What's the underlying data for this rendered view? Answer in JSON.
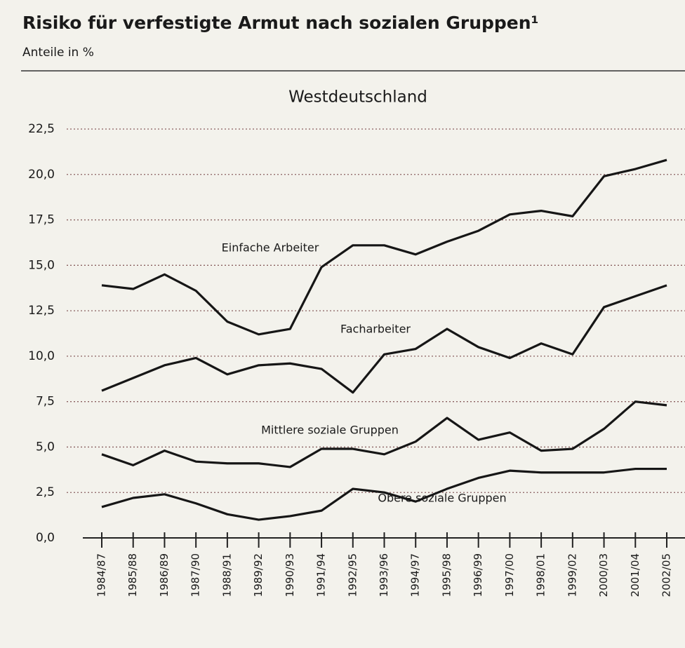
{
  "chart_data": {
    "type": "line",
    "title": "Risiko für verfestigte Armut nach sozialen Gruppen¹",
    "subtitle": "Anteile in %",
    "heading": "Westdeutschland",
    "categories": [
      "1984/87",
      "1985/88",
      "1986/89",
      "1987/90",
      "1988/91",
      "1989/92",
      "1990/93",
      "1991/94",
      "1992/95",
      "1993/96",
      "1994/97",
      "1995/98",
      "1996/99",
      "1997/00",
      "1998/01",
      "1999/02",
      "2000/03",
      "2001/04",
      "2002/05"
    ],
    "series": [
      {
        "name": "Einfache Arbeiter",
        "color": "#161616",
        "values": [
          13.9,
          13.7,
          14.5,
          13.6,
          11.9,
          11.2,
          11.5,
          14.9,
          16.1,
          16.1,
          15.6,
          16.3,
          16.9,
          17.8,
          18.0,
          17.7,
          19.9,
          20.3,
          20.8
        ]
      },
      {
        "name": "Facharbeiter",
        "color": "#161616",
        "values": [
          8.1,
          8.8,
          9.5,
          9.9,
          9.0,
          9.5,
          9.6,
          9.3,
          8.0,
          10.1,
          10.4,
          11.5,
          10.5,
          9.9,
          10.7,
          10.1,
          12.7,
          13.3,
          13.9
        ]
      },
      {
        "name": "Mittlere soziale Gruppen",
        "color": "#161616",
        "values": [
          4.6,
          4.0,
          4.8,
          4.2,
          4.1,
          4.1,
          3.9,
          4.9,
          4.9,
          4.6,
          5.3,
          6.6,
          5.4,
          5.8,
          4.8,
          4.9,
          6.0,
          7.5,
          7.3
        ]
      },
      {
        "name": "Obere soziale Gruppen",
        "color": "#161616",
        "values": [
          1.7,
          2.2,
          2.4,
          1.9,
          1.3,
          1.0,
          1.2,
          1.5,
          2.7,
          2.5,
          2.0,
          2.7,
          3.3,
          3.7,
          3.6,
          3.6,
          3.6,
          3.8,
          3.8
        ]
      }
    ],
    "ylim": [
      0,
      22.5
    ],
    "yticks": [
      {
        "value": 0,
        "label": "0,0"
      },
      {
        "value": 2.5,
        "label": "2,5"
      },
      {
        "value": 5,
        "label": "5,0"
      },
      {
        "value": 7.5,
        "label": "7,5"
      },
      {
        "value": 10,
        "label": "10,0"
      },
      {
        "value": 12.5,
        "label": "12,5"
      },
      {
        "value": 15,
        "label": "15,0"
      },
      {
        "value": 17.5,
        "label": "17,5"
      },
      {
        "value": 20,
        "label": "20,0"
      },
      {
        "value": 22.5,
        "label": "22,5"
      }
    ],
    "grid": true
  }
}
